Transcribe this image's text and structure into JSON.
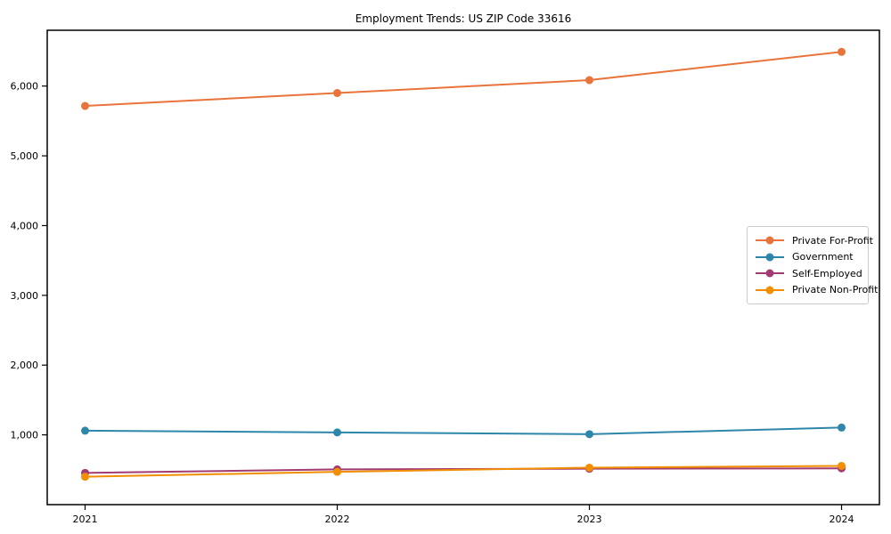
{
  "chart_data": {
    "type": "line",
    "title": "Employment Trends: US ZIP Code 33616",
    "xlabel": "",
    "ylabel": "",
    "categories": [
      "2021",
      "2022",
      "2023",
      "2024"
    ],
    "series": [
      {
        "name": "Private For-Profit",
        "color": "#E8743B",
        "values": [
          5715,
          5900,
          6085,
          6490
        ]
      },
      {
        "name": "Government",
        "color": "#2E86AB",
        "values": [
          1060,
          1035,
          1010,
          1105
        ]
      },
      {
        "name": "Self-Employed",
        "color": "#A23B72",
        "values": [
          455,
          505,
          515,
          520
        ]
      },
      {
        "name": "Private Non-Profit",
        "color": "#F18F01",
        "values": [
          400,
          470,
          530,
          555
        ]
      }
    ],
    "ylim": [
      0,
      6800
    ],
    "yticks": [
      1000,
      2000,
      3000,
      4000,
      5000,
      6000
    ],
    "ytick_labels": [
      "1,000",
      "2,000",
      "3,000",
      "4,000",
      "5,000",
      "6,000"
    ],
    "grid": false,
    "legend_position": "center-right",
    "marker": "circle"
  }
}
